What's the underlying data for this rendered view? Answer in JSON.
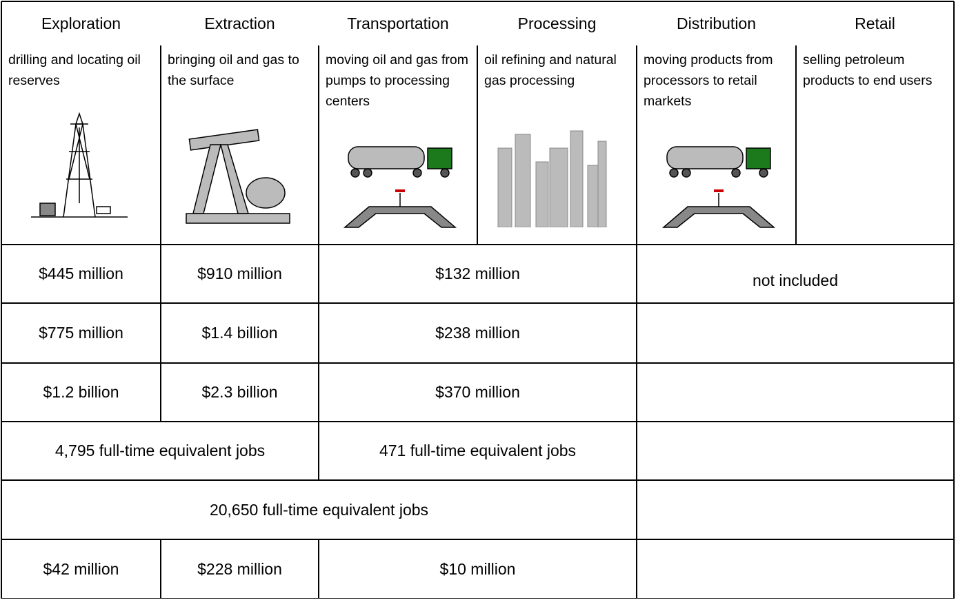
{
  "header": {
    "columns": [
      "Exploration",
      "Extraction",
      "Transportation",
      "Processing",
      "Distribution",
      "Retail"
    ],
    "descriptions": [
      "drilling and locating oil reserves",
      "bringing oil and gas to the surface",
      "moving oil and gas from pumps to processing centers",
      "oil refining and natural gas processing",
      "moving products from processors to retail markets",
      "selling petroleum products to end users"
    ]
  },
  "table": {
    "rows": [
      [
        "$445 million",
        "$910 million",
        "$132 million",
        "not included"
      ],
      [
        "$775 million",
        "$1.4 billion",
        "$238 million"
      ],
      [
        "$1.2 billion",
        "$2.3 billion",
        "$370 million"
      ],
      [
        "4,795 full-time equivalent jobs",
        "471 full-time equivalent jobs"
      ],
      [
        "20,650 full-time equivalent jobs"
      ],
      [
        "$42 million",
        "$228 million",
        "$10 million"
      ]
    ]
  }
}
